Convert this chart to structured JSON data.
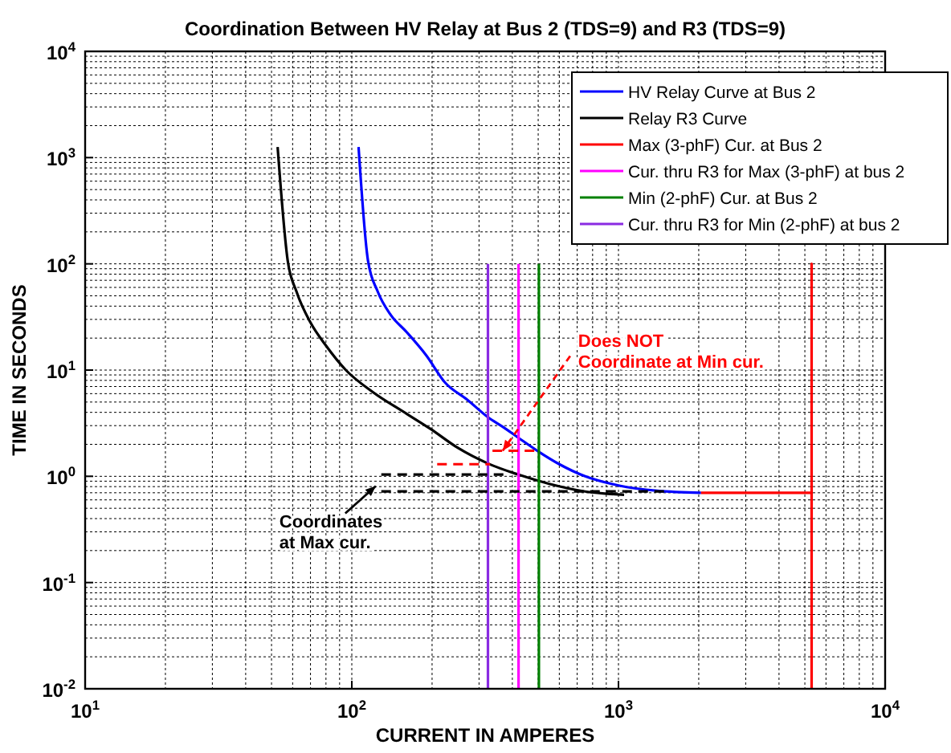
{
  "chart_data": {
    "type": "line",
    "title": "Coordination Between HV Relay at Bus 2 (TDS=9) and R3 (TDS=9)",
    "xlabel": "CURRENT IN AMPERES",
    "ylabel": "TIME IN SECONDS",
    "log": "xy",
    "grid": true,
    "legend": "top right",
    "line_style": "solid",
    "marker": "none",
    "xlim": [
      10,
      10000
    ],
    "ylim": [
      0.01,
      10000
    ],
    "xticks": [
      {
        "value": 10,
        "label": "10$^{1}$"
      },
      {
        "value": 100,
        "label": "10$^{2}$"
      },
      {
        "value": 1000,
        "label": "10$^{3}$"
      },
      {
        "value": 10000,
        "label": "10$^{4}$"
      }
    ],
    "yticks": [
      {
        "value": 0.01,
        "label": "10$^{-2}$"
      },
      {
        "value": 0.1,
        "label": "10$^{-1}$"
      },
      {
        "value": 1,
        "label": "10$^{0}$"
      },
      {
        "value": 10,
        "label": "10$^{1}$"
      },
      {
        "value": 100,
        "label": "10$^{2}$"
      },
      {
        "value": 1000,
        "label": "10$^{3}$"
      },
      {
        "value": 10000,
        "label": "10$^{4}$"
      }
    ],
    "series": [
      {
        "name": "HV Relay Curve at Bus 2",
        "color": "#0000ff",
        "x": [
          106,
          115,
          125,
          140,
          160,
          190,
          224,
          270,
          324,
          370,
          422,
          503,
          600,
          750,
          1000,
          1400,
          2040
        ],
        "values": [
          1260,
          107,
          55,
          33,
          23,
          13.8,
          7.6,
          5.3,
          3.6,
          2.9,
          2.3,
          1.7,
          1.3,
          1.0,
          0.82,
          0.73,
          0.7
        ]
      },
      {
        "name": "Relay R3 Curve",
        "color": "#000000",
        "x": [
          52.7,
          57.5,
          62,
          70,
          80,
          95,
          120,
          160,
          197,
          250,
          324,
          420,
          550,
          750,
          1050
        ],
        "values": [
          1260,
          107,
          55,
          28,
          17,
          10,
          6.2,
          3.9,
          2.8,
          1.85,
          1.32,
          1.04,
          0.85,
          0.72,
          0.67
        ]
      },
      {
        "name": "Max (3-phF) Cur. at Bus 2",
        "color": "#ff0000",
        "x": [
          2040,
          5300,
          5300,
          5300
        ],
        "values": [
          0.7,
          0.7,
          100,
          0.01
        ]
      },
      {
        "name": "Cur. thru R3 for Max (3-phF) at bus 2",
        "color": "#ff00ff",
        "x": [
          422,
          422
        ],
        "values": [
          100,
          0.01
        ]
      },
      {
        "name": "Min (2-phF) Cur. at Bus 2",
        "color": "#008000",
        "x": [
          503,
          503
        ],
        "values": [
          100,
          0.01
        ]
      },
      {
        "name": "Cur. thru R3 for Min (2-phF) at bus 2",
        "color": "#8a2be2",
        "x": [
          324,
          324
        ],
        "values": [
          100,
          0.01
        ]
      },
      {
        "color": "#000000",
        "line_style": "dashed",
        "x": [
          129,
          390
        ],
        "values": [
          1.04,
          1.04
        ]
      },
      {
        "color": "#000000",
        "line_style": "dashed",
        "x": [
          129,
          1550
        ],
        "values": [
          0.72,
          0.72
        ]
      },
      {
        "color": "#ff0000",
        "line_style": "dashed",
        "x": [
          209,
          330
        ],
        "values": [
          1.3,
          1.3
        ]
      },
      {
        "color": "#ff0000",
        "line_style": "dashed",
        "x": [
          337,
          503
        ],
        "values": [
          1.74,
          1.74
        ]
      }
    ],
    "annotations": [
      {
        "text": "Does NOT\nCoordinate at Min cur.",
        "x": 368,
        "y": 1.74
      },
      {
        "text": "Coordinates\nat Max cur.",
        "x": 123,
        "y": 0.81
      }
    ]
  }
}
